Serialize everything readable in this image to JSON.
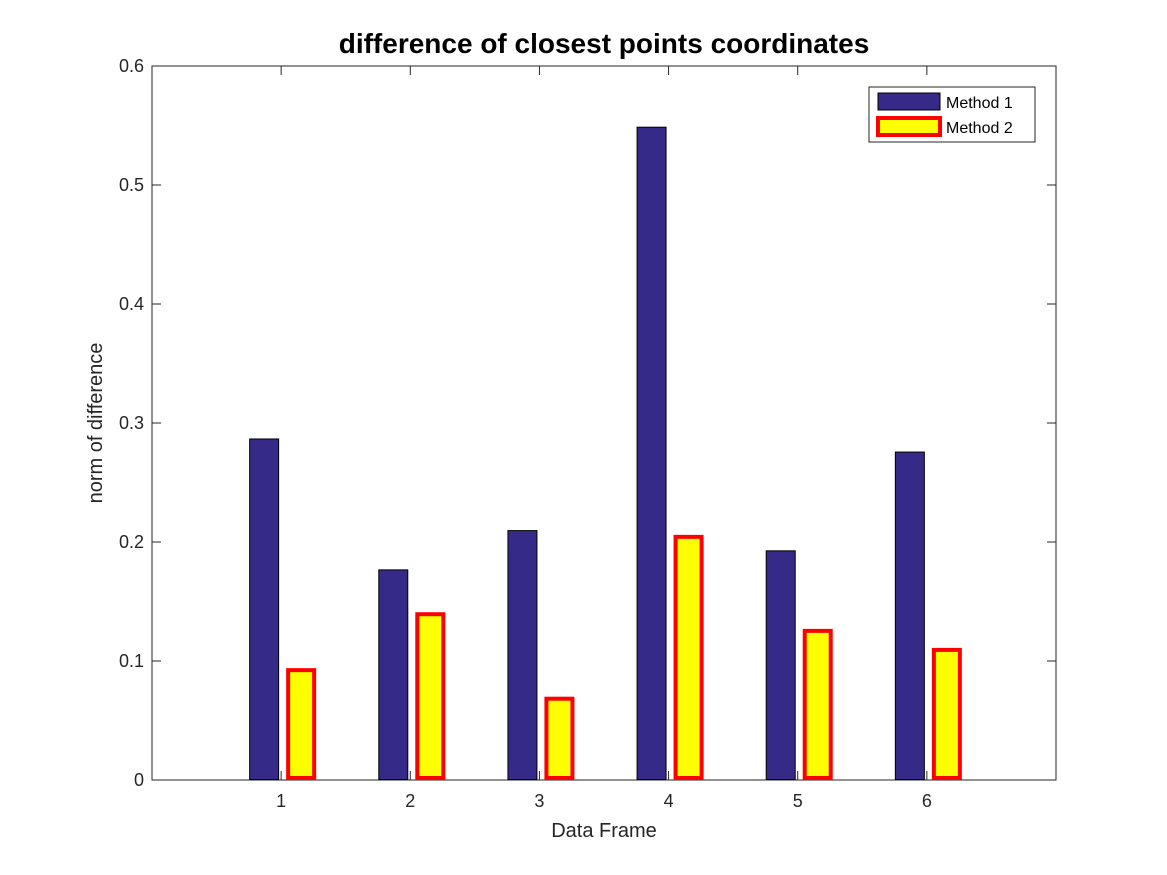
{
  "chart_data": {
    "type": "bar",
    "title": "difference of closest points coordinates",
    "xlabel": "Data Frame",
    "ylabel": "norm of difference",
    "categories": [
      "1",
      "2",
      "3",
      "4",
      "5",
      "6"
    ],
    "x_tick_labels": [
      "1",
      "2",
      "3",
      "4",
      "5",
      "6"
    ],
    "xlim": [
      0,
      7
    ],
    "ylim": [
      0,
      0.6
    ],
    "y_ticks": [
      0,
      0.1,
      0.2,
      0.3,
      0.4,
      0.5,
      0.6
    ],
    "y_tick_labels": [
      "0",
      "0.1",
      "0.2",
      "0.3",
      "0.4",
      "0.5",
      "0.6"
    ],
    "grid": false,
    "legend_position": "top-right",
    "series": [
      {
        "name": "Method 1",
        "values": [
          0.287,
          0.177,
          0.21,
          0.549,
          0.193,
          0.276
        ],
        "fill_color": "#352a87",
        "edge_color": "#000000"
      },
      {
        "name": "Method 2",
        "values": [
          0.094,
          0.141,
          0.07,
          0.206,
          0.127,
          0.111
        ],
        "fill_color": "#ffff00",
        "edge_color": "#ff0000"
      }
    ]
  }
}
